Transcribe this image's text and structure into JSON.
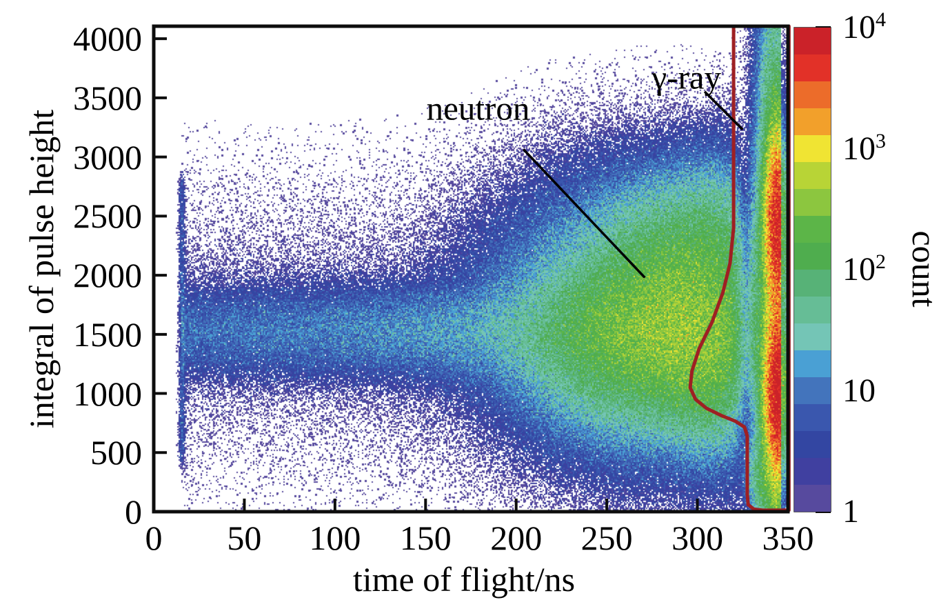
{
  "figure": {
    "kind": "2D time-of-flight vs pulse-height histogram"
  },
  "chart_data": {
    "type": "heatmap",
    "xlabel": "time of flight/ns",
    "ylabel": "integral of pulse height",
    "xlim": [
      0,
      350
    ],
    "ylim": [
      0,
      4106
    ],
    "xticks": [
      0,
      50,
      100,
      150,
      200,
      250,
      300,
      350
    ],
    "yticks": [
      0,
      500,
      1000,
      1500,
      2000,
      2500,
      3000,
      3500,
      4000
    ],
    "colorbar": {
      "label": "count",
      "scale": "log",
      "min": 1,
      "max": 10000,
      "ticks": [
        {
          "text": "10",
          "sup": "4",
          "value": 10000
        },
        {
          "text": "10",
          "sup": "3",
          "value": 1000
        },
        {
          "text": "10",
          "sup": "2",
          "value": 100
        },
        {
          "text": "10",
          "sup": "",
          "value": 10
        },
        {
          "text": "1",
          "sup": "",
          "value": 1
        }
      ],
      "colors": [
        "#574a9e",
        "#4040a0",
        "#3346a2",
        "#3a57ae",
        "#4374bc",
        "#4aa0d4",
        "#74c5b6",
        "#66bd96",
        "#57b277",
        "#4fad4e",
        "#5cb548",
        "#8cc63f",
        "#b8d436",
        "#f0e433",
        "#f2a02b",
        "#ec6c2a",
        "#e23128",
        "#cb2229"
      ]
    },
    "annotations": [
      {
        "id": "neutron",
        "text": "neutron",
        "text_xy": [
          179,
          3410
        ],
        "line": [
          [
            204,
            3065
          ],
          [
            271,
            1980
          ]
        ]
      },
      {
        "id": "gamma",
        "text": "γ-ray",
        "text_xy": [
          294,
          3672
        ],
        "line": [
          [
            304,
            3553
          ],
          [
            325,
            3232
          ]
        ]
      }
    ],
    "gate": {
      "name": "gamma-ray-selection-gate",
      "color": "#9e2023",
      "points": [
        [
          320,
          4106
        ],
        [
          320,
          2400
        ],
        [
          318,
          2100
        ],
        [
          314,
          1850
        ],
        [
          308,
          1600
        ],
        [
          301,
          1380
        ],
        [
          297,
          1190
        ],
        [
          296,
          1050
        ],
        [
          299,
          950
        ],
        [
          305,
          875
        ],
        [
          313,
          815
        ],
        [
          321,
          765
        ],
        [
          326,
          715
        ],
        [
          327.5,
          640
        ],
        [
          327.5,
          150
        ],
        [
          328,
          60
        ],
        [
          331,
          22
        ],
        [
          336,
          12
        ],
        [
          350.5,
          12
        ],
        [
          350.5,
          4106
        ]
      ]
    },
    "features": {
      "description": "approximate event-density model; count values are per-bin amplitudes read from the colour scale",
      "bands": [
        {
          "name": "recoil-band",
          "y_center": 1520,
          "y_sigma": 215,
          "x_range": [
            15,
            333
          ],
          "count_range": [
            7,
            32
          ]
        },
        {
          "name": "diffuse-halo",
          "y_center": 1550,
          "y_sigma": 680,
          "x_range": [
            15,
            334
          ],
          "count_range": [
            1.1,
            1.1
          ]
        },
        {
          "name": "sparse-background",
          "y_center": 1200,
          "y_sigma": 1300,
          "x_range": [
            15,
            334
          ],
          "count_range": [
            0.045,
            0.045
          ]
        }
      ],
      "edge_line": {
        "name": "tof-start-edge",
        "x": 15.5,
        "x_sigma": 1.1,
        "y_range": [
          430,
          2800
        ],
        "count": 5
      },
      "blobs": [
        {
          "name": "neutron-cluster-1",
          "center": [
            262,
            1480
          ],
          "sigma": [
            26,
            330
          ],
          "count": 160
        },
        {
          "name": "neutron-cluster-2",
          "center": [
            288,
            1800
          ],
          "sigma": [
            22,
            380
          ],
          "count": 180
        },
        {
          "name": "neutron-cluster-3",
          "center": [
            300,
            1300
          ],
          "sigma": [
            20,
            280
          ],
          "count": 130
        },
        {
          "name": "neutron-envelope",
          "center": [
            283,
            1650
          ],
          "sigma": [
            48,
            620
          ],
          "count": 45
        },
        {
          "name": "neutron-extension",
          "center": [
            308,
            1700
          ],
          "sigma": [
            11,
            550
          ],
          "count": 55
        },
        {
          "name": "neutron-upper",
          "center": [
            305,
            2300
          ],
          "sigma": [
            22,
            300
          ],
          "count": 25
        },
        {
          "name": "band-bump-low",
          "center": [
            305,
            950
          ],
          "sigma": [
            14,
            220
          ],
          "count": 18
        },
        {
          "name": "gap-floor",
          "center": [
            325,
            1500
          ],
          "sigma": [
            7,
            800
          ],
          "count": 7
        },
        {
          "name": "gamma-envelope",
          "center": [
            340.5,
            2000
          ],
          "sigma": [
            6.5,
            1500
          ],
          "count": 6.5
        },
        {
          "name": "gamma-top-column",
          "center": [
            339,
            3500
          ],
          "sigma": [
            6,
            600
          ],
          "count": 4
        },
        {
          "name": "gamma-green-core",
          "center": [
            343,
            1650
          ],
          "sigma": [
            5,
            1150
          ],
          "count": 220
        },
        {
          "name": "gamma-hot-low",
          "center": [
            345,
            1000
          ],
          "sigma": [
            3.4,
            300
          ],
          "count": 9000
        },
        {
          "name": "gamma-hot-high",
          "center": [
            344.5,
            2430
          ],
          "sigma": [
            3.2,
            330
          ],
          "count": 6000
        },
        {
          "name": "gamma-orange-bridge",
          "center": [
            344.5,
            1715
          ],
          "sigma": [
            3.6,
            800
          ],
          "count": 1100
        },
        {
          "name": "gamma-foot",
          "center": [
            337.5,
            300
          ],
          "sigma": [
            5,
            170
          ],
          "count": 90
        }
      ],
      "gap_dip": {
        "x_center": 327,
        "x_sigma": 4.5,
        "depth": 0.8
      },
      "gamma_x_cutoff": 346.5
    }
  }
}
